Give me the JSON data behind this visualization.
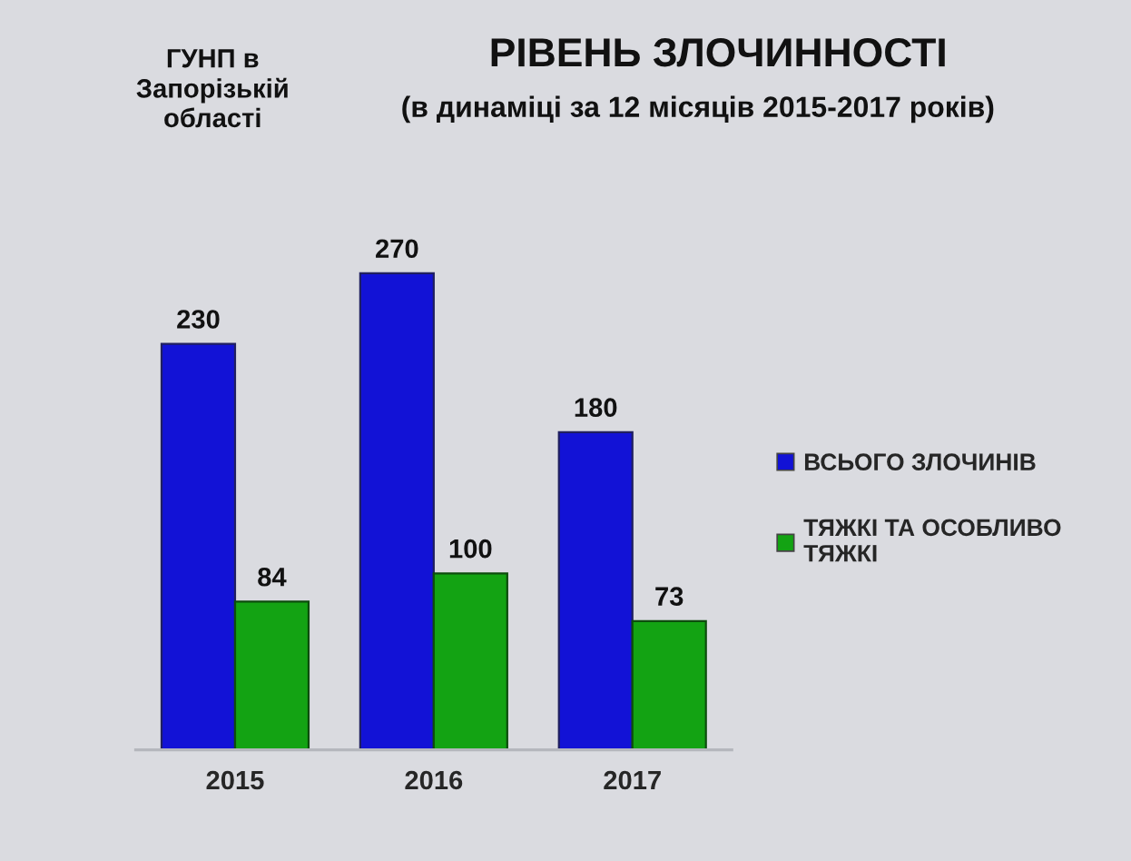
{
  "chart_data": {
    "type": "bar",
    "title": "РІВЕНЬ ЗЛОЧИННОСТІ",
    "subtitle": "(в динаміці за 12 місяців 2015-2017 років)",
    "annotations": [
      "ГУНП в\nЗапорізькій\nобласті"
    ],
    "categories": [
      "2015",
      "2016",
      "2017"
    ],
    "series": [
      {
        "name": "ВСЬОГО ЗЛОЧИНІВ",
        "color": "#1212d6",
        "values": [
          230,
          270,
          180
        ]
      },
      {
        "name": "ТЯЖКІ ТА ОСОБЛИВО\nТЯЖКІ",
        "color": "#13a313",
        "values": [
          84,
          100,
          73
        ]
      }
    ],
    "data_labels": true,
    "legend": "right",
    "tick_labels": "x",
    "grid": false
  }
}
